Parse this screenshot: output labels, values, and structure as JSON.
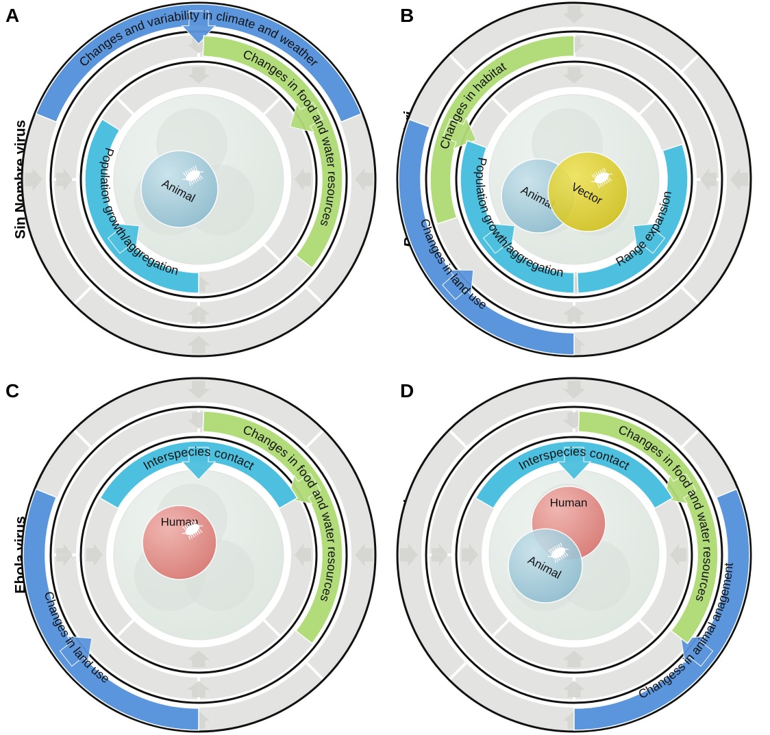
{
  "colors": {
    "climate": "#5b95dc",
    "land": "#5b95dc",
    "food": "#b2dc7a",
    "habitat": "#b2dc7a",
    "population": "#4cc0de",
    "contact": "#4cc0de",
    "range": "#4cc0de",
    "animal": "#9cc8d9",
    "vector": "#e0d23a",
    "human": "#e08a86",
    "ring_grey": "#e3e3e1",
    "center": "#e5ece7"
  },
  "panels": [
    {
      "id": "A",
      "letter": "A",
      "label": "Sin Nombre virus",
      "label_italic": false,
      "arcs": [
        {
          "id": "climate",
          "text": "Changes and variability in climate and weather",
          "color": "climate"
        },
        {
          "id": "food",
          "text": "Changes in food and water resources",
          "color": "food"
        },
        {
          "id": "population",
          "text": "Population growth/aggregation",
          "color": "population"
        }
      ],
      "nodes": [
        {
          "id": "animal",
          "text": "Animal",
          "color": "animal",
          "pathogen_icon": "microbe-icon"
        }
      ]
    },
    {
      "id": "B",
      "letter": "B",
      "label": "Borrelia burgdorferi",
      "label_italic": true,
      "arcs": [
        {
          "id": "land",
          "text": "Changes in land use",
          "color": "land"
        },
        {
          "id": "habitat",
          "text": "Changes in habitat",
          "color": "habitat"
        },
        {
          "id": "population",
          "text": "Population growth/aggregation",
          "color": "population"
        },
        {
          "id": "range",
          "text": "Range expansion",
          "color": "range"
        }
      ],
      "nodes": [
        {
          "id": "animal",
          "text": "Animal",
          "color": "animal"
        },
        {
          "id": "vector",
          "text": "Vector",
          "color": "vector",
          "pathogen_icon": "microbe-icon"
        }
      ]
    },
    {
      "id": "C",
      "letter": "C",
      "label": "Ebola virus",
      "label_italic": false,
      "arcs": [
        {
          "id": "land",
          "text": "Changes in land use",
          "color": "land"
        },
        {
          "id": "food",
          "text": "Changes in food and water resources",
          "color": "food"
        },
        {
          "id": "contact",
          "text": "Interspecies contact",
          "color": "contact"
        }
      ],
      "nodes": [
        {
          "id": "human",
          "text": "Human",
          "color": "human",
          "pathogen_icon": "microbe-icon"
        }
      ]
    },
    {
      "id": "D",
      "letter": "D",
      "label": "Escherichia coli",
      "label_italic": true,
      "arcs": [
        {
          "id": "animal_mgmt",
          "text": "Changess in animal anagement",
          "color": "land"
        },
        {
          "id": "food",
          "text": "Changes in food and water resources",
          "color": "food"
        },
        {
          "id": "contact",
          "text": "Interspecies contact",
          "color": "contact"
        }
      ],
      "nodes": [
        {
          "id": "human",
          "text": "Human",
          "color": "human"
        },
        {
          "id": "animal",
          "text": "Animal",
          "color": "animal",
          "pathogen_icon": "microbe-icon"
        }
      ]
    }
  ]
}
